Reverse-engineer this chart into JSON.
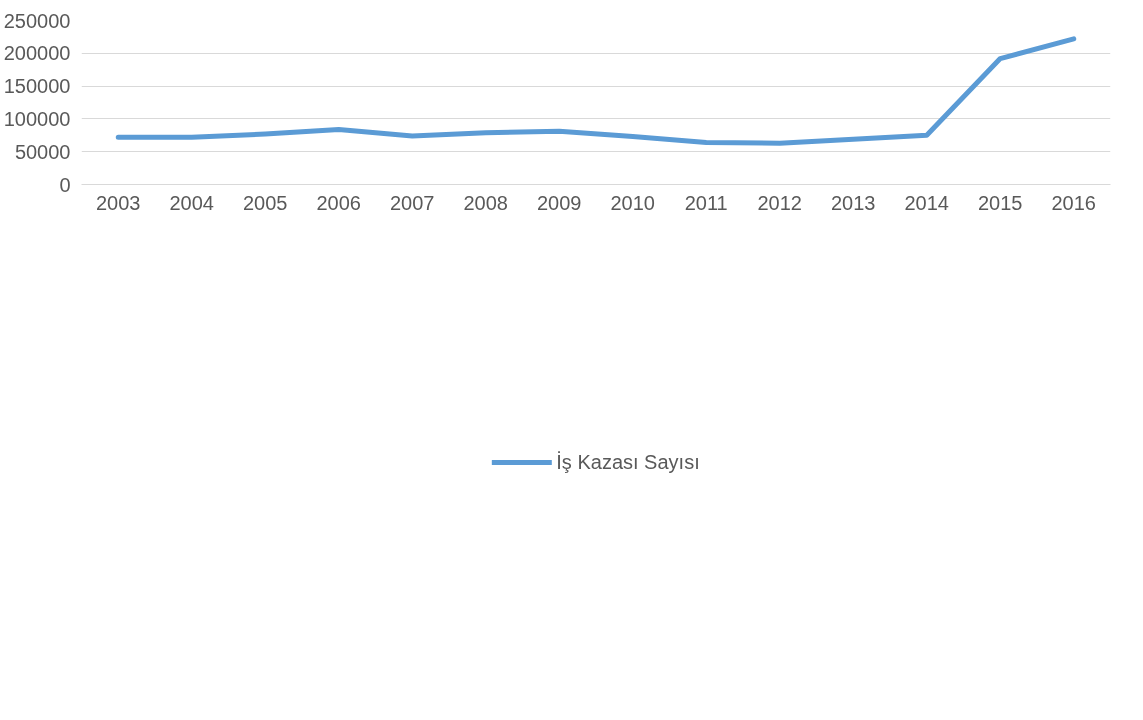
{
  "chart_data": {
    "type": "line",
    "categories": [
      "2003",
      "2004",
      "2005",
      "2006",
      "2007",
      "2008",
      "2009",
      "2010",
      "2011",
      "2012",
      "2013",
      "2014",
      "2015",
      "2016"
    ],
    "series": [
      {
        "name": "İş Kazası Sayısı",
        "color": "#5b9bd5",
        "values": [
          72000,
          72000,
          77000,
          84000,
          74000,
          79000,
          81000,
          73000,
          64000,
          63000,
          69000,
          75000,
          192000,
          222000
        ]
      }
    ],
    "ylim": [
      0,
      250000
    ],
    "yticks": [
      0,
      50000,
      100000,
      150000,
      200000,
      250000
    ],
    "grid": "y",
    "legend": "bottom",
    "line_style": "solid",
    "marker": "none"
  }
}
